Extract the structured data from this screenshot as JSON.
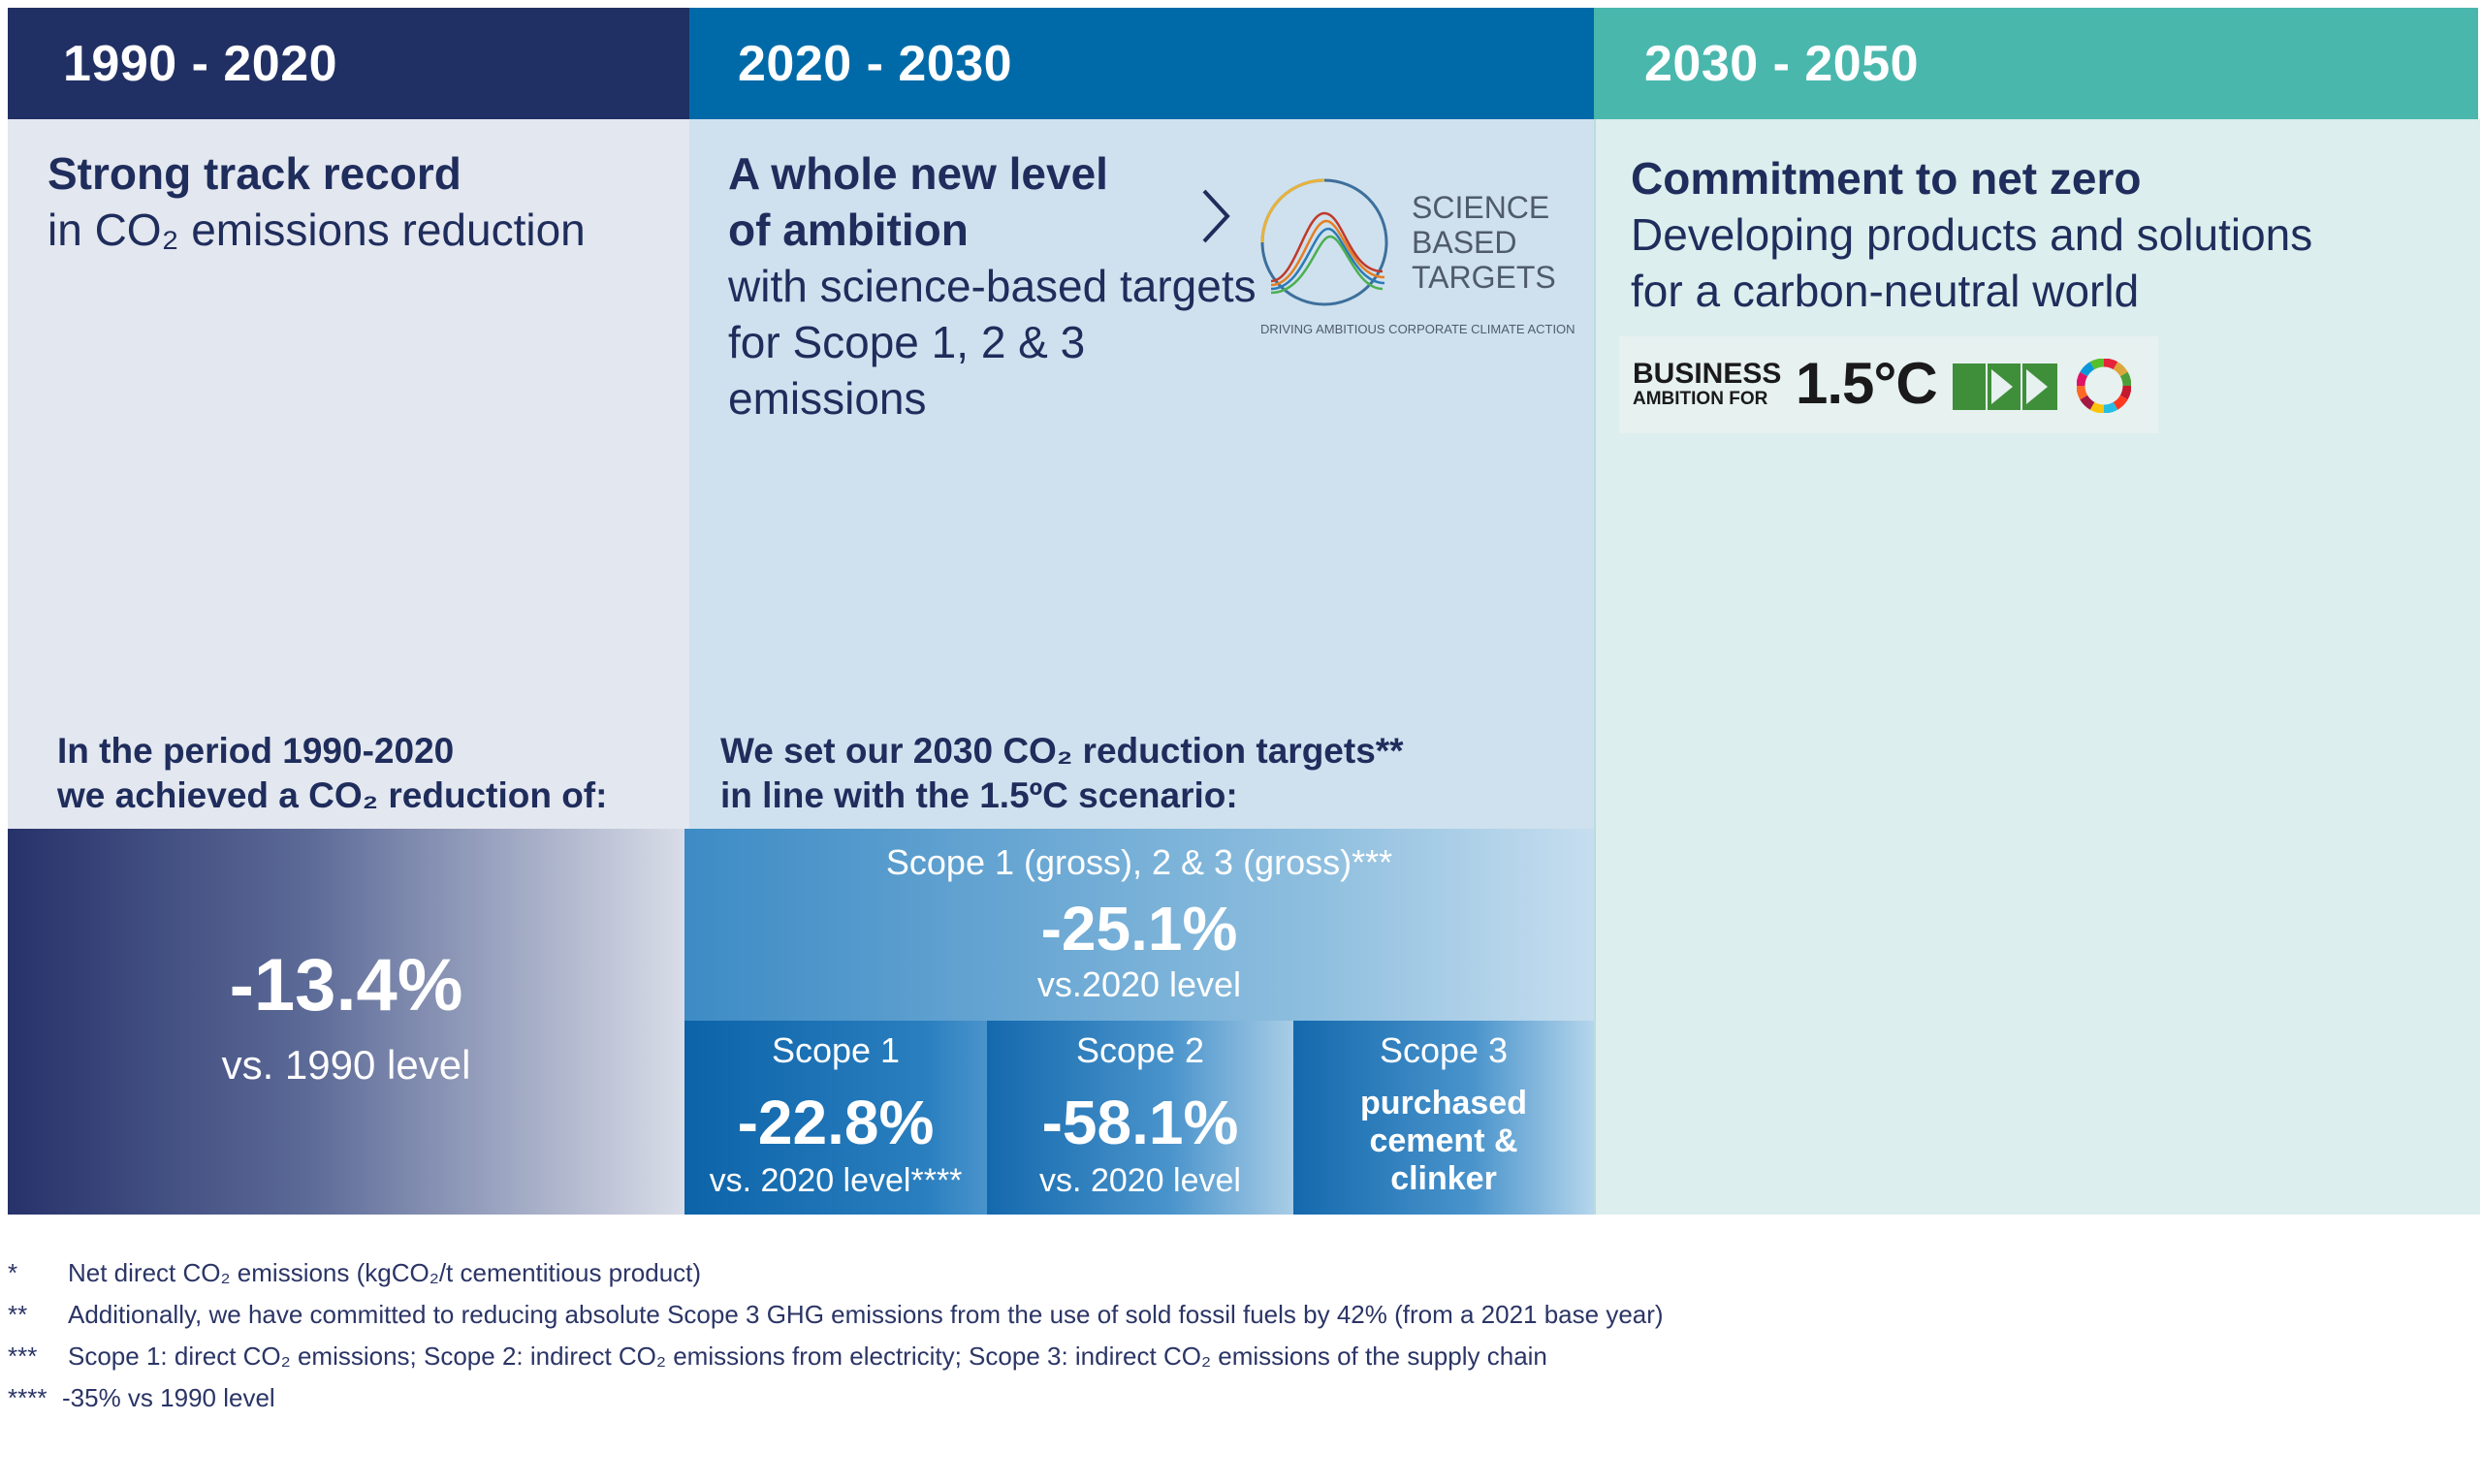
{
  "columns": [
    {
      "period": "1990 - 2020",
      "title": "Strong track record",
      "subtitle": "in CO₂ emissions reduction"
    },
    {
      "period": "2020 - 2030",
      "title_line1": "A whole new level",
      "title_line2": "of ambition",
      "sub_line1": "with science-based targets",
      "sub_line2": "for Scope 1, 2 & 3 emissions"
    },
    {
      "period": "2030 - 2050",
      "title": "Commitment to net zero",
      "sub_line1": "Developing products and solutions",
      "sub_line2": "for a carbon-neutral world"
    }
  ],
  "sbt_logo": {
    "line1": "SCIENCE",
    "line2": "BASED",
    "line3": "TARGETS",
    "tagline": "DRIVING AMBITIOUS CORPORATE CLIMATE ACTION"
  },
  "business_logo": {
    "line1": "BUSINESS",
    "line2": "AMBITION FOR",
    "temp": "1.5°C"
  },
  "achieved": {
    "label_line1": "In the period 1990-2020",
    "label_line2": "we achieved a CO₂ reduction of:",
    "value": "-13.4%",
    "caption": "vs. 1990 level"
  },
  "targets": {
    "label_line1": "We set our 2030 CO₂ reduction targets**",
    "label_line2": "in line with the 1.5ºC scenario:",
    "combined": {
      "scope": "Scope 1 (gross), 2 & 3 (gross)***",
      "value": "-25.1%",
      "caption": "vs.2020 level"
    },
    "scope1": {
      "scope": "Scope 1",
      "value": "-22.8%",
      "caption": "vs. 2020 level****"
    },
    "scope2": {
      "scope": "Scope 2",
      "value": "-58.1%",
      "caption": "vs. 2020 level"
    },
    "scope3": {
      "scope": "Scope 3",
      "line1": "purchased",
      "line2": "cement &",
      "line3": "clinker"
    }
  },
  "footnotes": [
    {
      "mark": "*",
      "text": "Net direct CO₂ emissions (kgCO₂/t cementitious product)"
    },
    {
      "mark": "**",
      "text": "Additionally, we have committed  to reducing absolute Scope 3 GHG emissions from the use of sold fossil fuels by 42% (from a 2021 base year)"
    },
    {
      "mark": "***",
      "text": "Scope 1: direct CO₂ emissions; Scope 2: indirect CO₂ emissions from electricity; Scope 3: indirect CO₂ emissions of the supply chain"
    },
    {
      "mark": "****",
      "text": "-35% vs 1990 level"
    }
  ],
  "colors": {
    "header1": "#213064",
    "header2": "#006aa8",
    "header3": "#4ab7ad",
    "body1": "#e3e7ef",
    "body2": "#cfe1ee",
    "body3": "#dceeed",
    "text": "#1f2d5c"
  }
}
